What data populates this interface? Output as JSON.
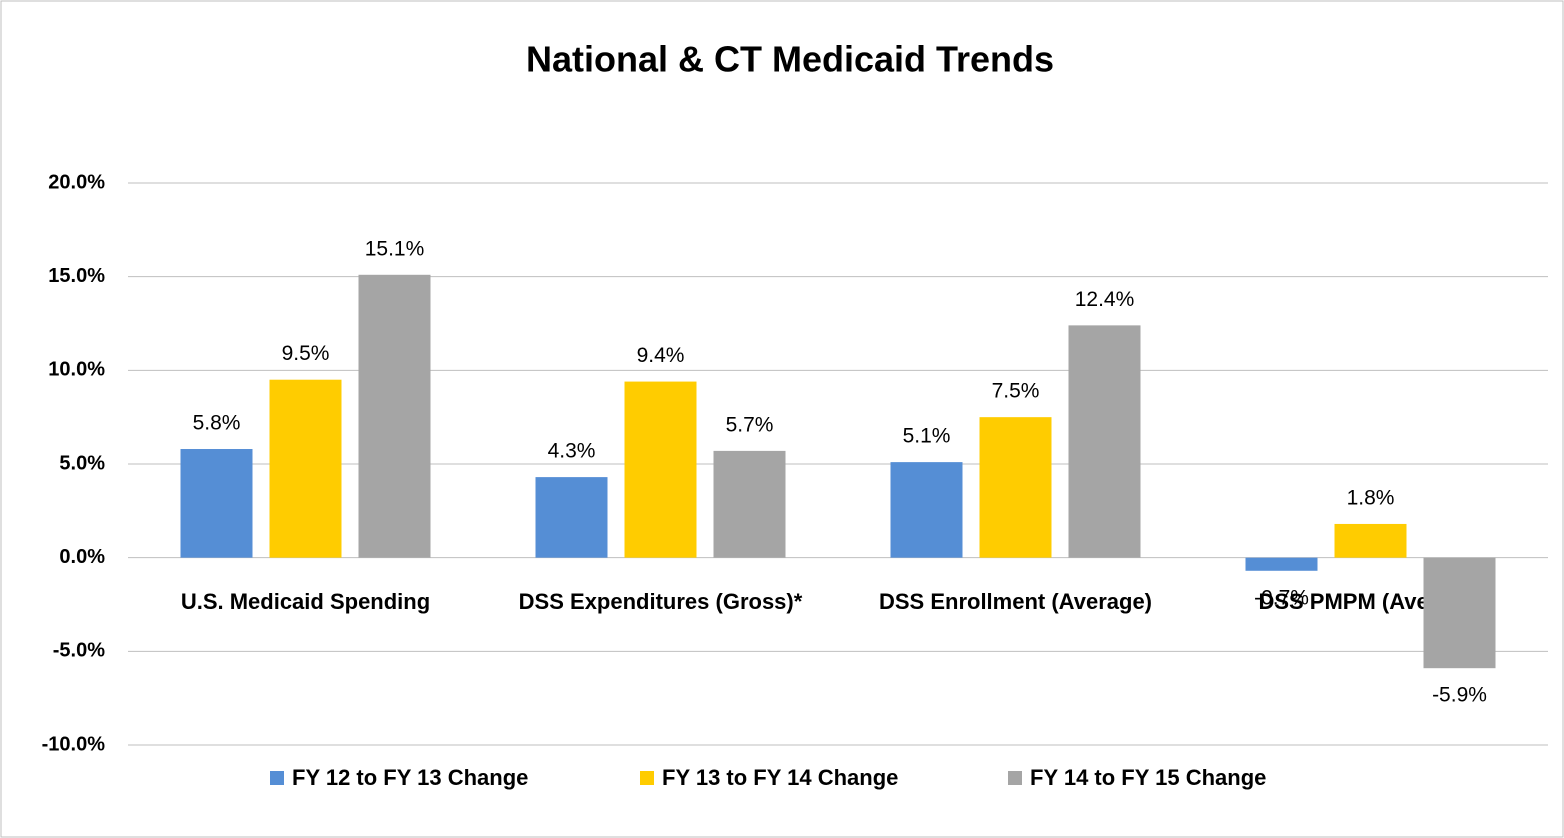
{
  "chart_data": {
    "type": "bar",
    "title": "National & CT Medicaid Trends",
    "categories": [
      "U.S. Medicaid Spending",
      "DSS Expenditures (Gross)*",
      "DSS Enrollment (Average)",
      "DSS PMPM (Average)"
    ],
    "series": [
      {
        "name": "FY 12 to FY 13 Change",
        "color": "#558ed5",
        "values": [
          5.8,
          4.3,
          5.1,
          -0.7
        ],
        "value_labels": [
          "5.8%",
          "4.3%",
          "5.1%",
          "-0.7%"
        ]
      },
      {
        "name": "FY 13 to FY 14 Change",
        "color": "#ffcc00",
        "values": [
          9.5,
          9.4,
          7.5,
          1.8
        ],
        "value_labels": [
          "9.5%",
          "9.4%",
          "7.5%",
          "1.8%"
        ]
      },
      {
        "name": "FY 14 to FY 15 Change",
        "color": "#a5a5a5",
        "values": [
          15.1,
          5.7,
          12.4,
          -5.9
        ],
        "value_labels": [
          "15.1%",
          "5.7%",
          "12.4%",
          "-5.9%"
        ]
      }
    ],
    "ylim": [
      -10,
      20
    ],
    "yticks": [
      {
        "value": -10,
        "label": "-10.0%"
      },
      {
        "value": -5,
        "label": "-5.0%"
      },
      {
        "value": 0,
        "label": "0.0%"
      },
      {
        "value": 5,
        "label": "5.0%"
      },
      {
        "value": 10,
        "label": "10.0%"
      },
      {
        "value": 15,
        "label": "15.0%"
      },
      {
        "value": 20,
        "label": "20.0%"
      }
    ],
    "grid": true,
    "legend": "bottom"
  }
}
